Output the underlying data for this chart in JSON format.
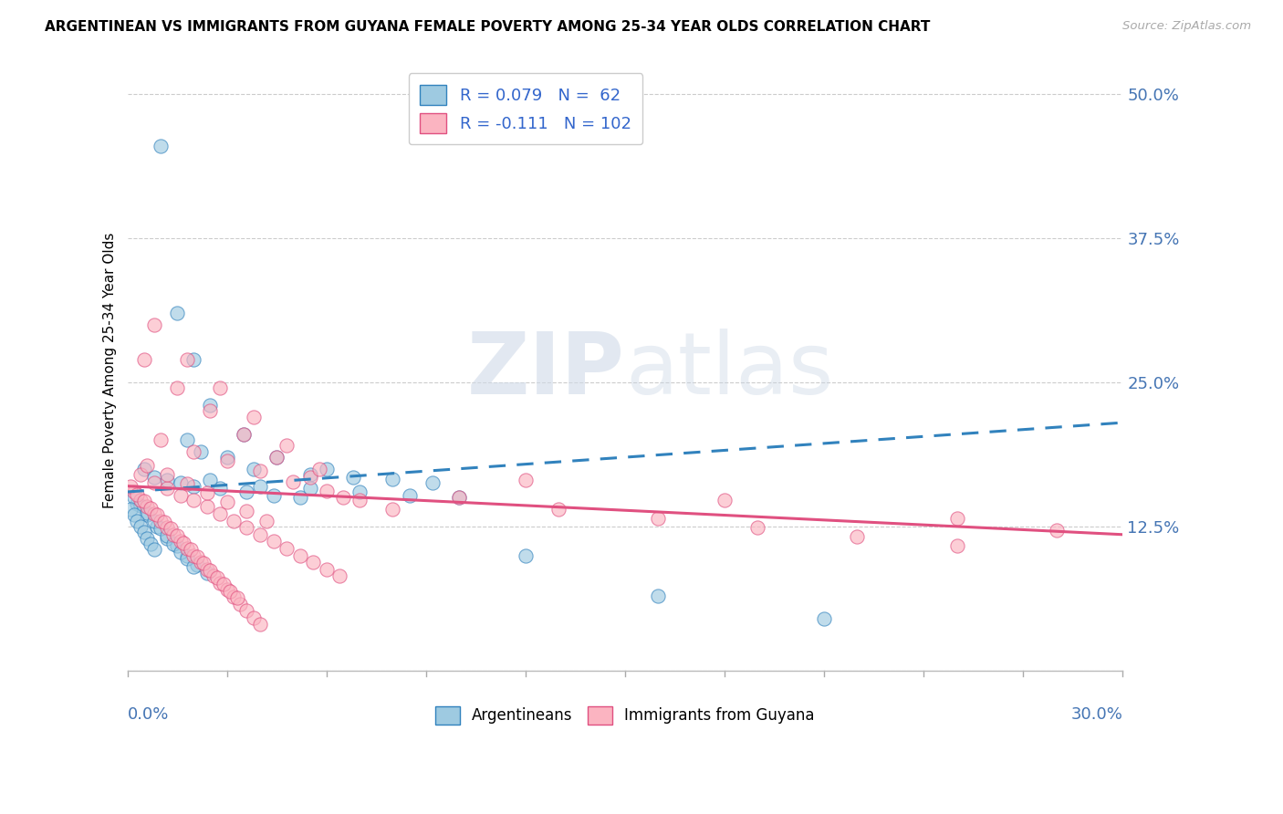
{
  "title": "ARGENTINEAN VS IMMIGRANTS FROM GUYANA FEMALE POVERTY AMONG 25-34 YEAR OLDS CORRELATION CHART",
  "source": "Source: ZipAtlas.com",
  "xmin": 0.0,
  "xmax": 0.3,
  "ymin": 0.0,
  "ymax": 0.52,
  "blue_color": "#9ecae1",
  "blue_color_line": "#3182bd",
  "pink_color": "#fbb4c1",
  "pink_color_line": "#e05080",
  "ytick_vals": [
    0.0,
    0.125,
    0.25,
    0.375,
    0.5
  ],
  "ytick_labels": [
    "",
    "12.5%",
    "25.0%",
    "37.5%",
    "50.0%"
  ],
  "blue_R": "0.079",
  "blue_N": "62",
  "pink_R": "-0.111",
  "pink_N": "102",
  "watermark_zip": "ZIP",
  "watermark_atlas": "atlas",
  "legend_blue": "Argentineans",
  "legend_pink": "Immigrants from Guyana",
  "blue_trend_x": [
    0.0,
    0.3
  ],
  "blue_trend_y": [
    0.155,
    0.215
  ],
  "pink_trend_x": [
    0.0,
    0.3
  ],
  "pink_trend_y": [
    0.16,
    0.118
  ],
  "blue_scatter_x": [
    0.018,
    0.022,
    0.03,
    0.038,
    0.055,
    0.068,
    0.08,
    0.092,
    0.01,
    0.015,
    0.02,
    0.025,
    0.035,
    0.045,
    0.06,
    0.005,
    0.008,
    0.012,
    0.016,
    0.02,
    0.028,
    0.036,
    0.044,
    0.052,
    0.003,
    0.006,
    0.009,
    0.012,
    0.015,
    0.018,
    0.021,
    0.024,
    0.002,
    0.004,
    0.006,
    0.008,
    0.01,
    0.012,
    0.014,
    0.016,
    0.018,
    0.02,
    0.001,
    0.002,
    0.003,
    0.004,
    0.005,
    0.006,
    0.007,
    0.008,
    0.025,
    0.04,
    0.055,
    0.07,
    0.085,
    0.1,
    0.12,
    0.16,
    0.21
  ],
  "blue_scatter_y": [
    0.2,
    0.19,
    0.185,
    0.175,
    0.17,
    0.168,
    0.166,
    0.163,
    0.455,
    0.31,
    0.27,
    0.23,
    0.205,
    0.185,
    0.175,
    0.175,
    0.168,
    0.165,
    0.163,
    0.16,
    0.158,
    0.155,
    0.152,
    0.15,
    0.145,
    0.135,
    0.125,
    0.115,
    0.108,
    0.1,
    0.092,
    0.085,
    0.15,
    0.143,
    0.137,
    0.13,
    0.123,
    0.117,
    0.11,
    0.103,
    0.097,
    0.09,
    0.14,
    0.135,
    0.13,
    0.125,
    0.12,
    0.115,
    0.11,
    0.105,
    0.165,
    0.16,
    0.158,
    0.155,
    0.152,
    0.15,
    0.1,
    0.065,
    0.045
  ],
  "pink_scatter_x": [
    0.002,
    0.004,
    0.006,
    0.008,
    0.01,
    0.012,
    0.014,
    0.016,
    0.018,
    0.02,
    0.022,
    0.024,
    0.026,
    0.028,
    0.03,
    0.032,
    0.034,
    0.036,
    0.038,
    0.04,
    0.001,
    0.003,
    0.005,
    0.007,
    0.009,
    0.011,
    0.013,
    0.015,
    0.017,
    0.019,
    0.021,
    0.023,
    0.025,
    0.027,
    0.029,
    0.031,
    0.033,
    0.004,
    0.008,
    0.012,
    0.016,
    0.02,
    0.024,
    0.028,
    0.032,
    0.036,
    0.04,
    0.044,
    0.048,
    0.052,
    0.056,
    0.06,
    0.064,
    0.01,
    0.02,
    0.03,
    0.04,
    0.05,
    0.06,
    0.07,
    0.08,
    0.005,
    0.015,
    0.025,
    0.035,
    0.045,
    0.055,
    0.065,
    0.008,
    0.018,
    0.028,
    0.038,
    0.048,
    0.058,
    0.1,
    0.13,
    0.16,
    0.19,
    0.22,
    0.25,
    0.12,
    0.18,
    0.25,
    0.28,
    0.006,
    0.012,
    0.018,
    0.024,
    0.03,
    0.036,
    0.042
  ],
  "pink_scatter_y": [
    0.155,
    0.148,
    0.142,
    0.136,
    0.13,
    0.124,
    0.118,
    0.112,
    0.106,
    0.1,
    0.094,
    0.088,
    0.082,
    0.076,
    0.07,
    0.064,
    0.058,
    0.052,
    0.046,
    0.04,
    0.16,
    0.153,
    0.147,
    0.141,
    0.135,
    0.129,
    0.123,
    0.117,
    0.111,
    0.105,
    0.099,
    0.093,
    0.087,
    0.081,
    0.075,
    0.069,
    0.063,
    0.17,
    0.163,
    0.158,
    0.152,
    0.148,
    0.142,
    0.136,
    0.13,
    0.124,
    0.118,
    0.112,
    0.106,
    0.1,
    0.094,
    0.088,
    0.082,
    0.2,
    0.19,
    0.182,
    0.173,
    0.164,
    0.156,
    0.148,
    0.14,
    0.27,
    0.245,
    0.225,
    0.205,
    0.185,
    0.168,
    0.15,
    0.3,
    0.27,
    0.245,
    0.22,
    0.195,
    0.175,
    0.15,
    0.14,
    0.132,
    0.124,
    0.116,
    0.108,
    0.165,
    0.148,
    0.132,
    0.122,
    0.178,
    0.17,
    0.162,
    0.154,
    0.146,
    0.138,
    0.13
  ]
}
